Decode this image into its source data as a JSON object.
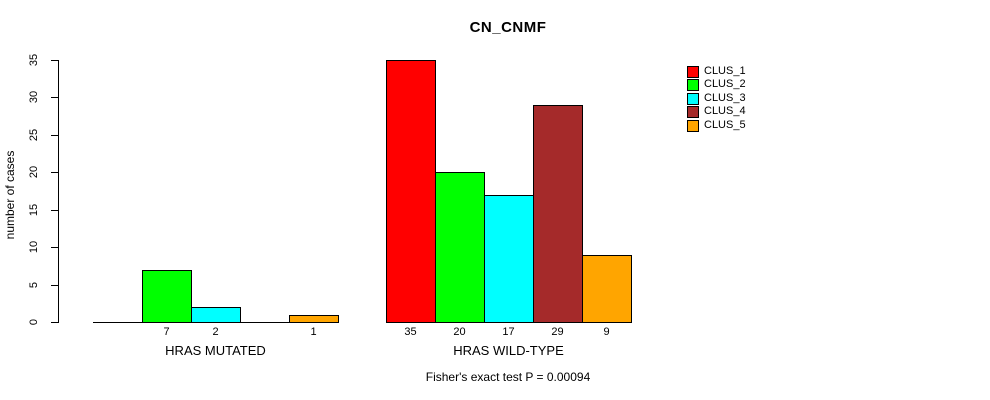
{
  "chart_data": {
    "type": "bar",
    "title": "CN_CNMF",
    "subtitle": "Fisher's exact test P = 0.00094",
    "ylabel": "number of cases",
    "xlabel": "",
    "ylim": [
      0,
      35
    ],
    "yticks": [
      0,
      5,
      10,
      15,
      20,
      25,
      30,
      35
    ],
    "grid": false,
    "background": "#FFFFFF",
    "categories": [
      "HRAS MUTATED",
      "HRAS WILD-TYPE"
    ],
    "series": [
      {
        "name": "CLUS_1",
        "color": "#FF0000",
        "values": [
          0,
          35
        ]
      },
      {
        "name": "CLUS_2",
        "color": "#00FF00",
        "values": [
          7,
          20
        ]
      },
      {
        "name": "CLUS_3",
        "color": "#00FFFF",
        "values": [
          2,
          17
        ]
      },
      {
        "name": "CLUS_4",
        "color": "#A52A2A",
        "values": [
          0,
          29
        ]
      },
      {
        "name": "CLUS_5",
        "color": "#FFA500",
        "values": [
          1,
          9
        ]
      }
    ],
    "bar_value_labels": [
      [
        "",
        "7",
        "2",
        "",
        "1"
      ],
      [
        "35",
        "20",
        "17",
        "29",
        "9"
      ]
    ],
    "zero_bars_drawn_as_baseline_segments": true,
    "legend": {
      "position": "right",
      "entries": [
        "CLUS_1",
        "CLUS_2",
        "CLUS_3",
        "CLUS_4",
        "CLUS_5"
      ]
    },
    "bar_border_color": "#000000",
    "axis_color": "#000000"
  }
}
